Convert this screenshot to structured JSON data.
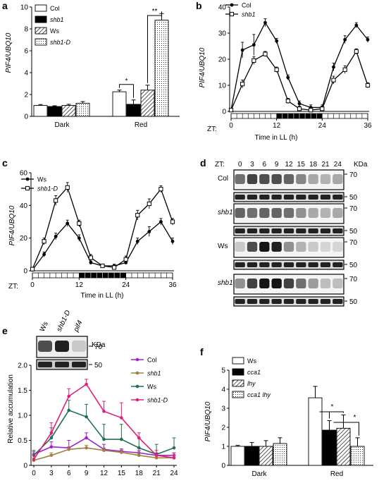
{
  "panels": {
    "a": {
      "label": "a",
      "chart_data": {
        "type": "bar",
        "ylabel": "PIF4/UBQ10",
        "ylim": [
          0,
          10
        ],
        "yticks": [
          "0",
          "2",
          "4",
          "6",
          "8",
          "10"
        ],
        "categories": [
          "Dark",
          "Red"
        ],
        "series": [
          {
            "name": "Col",
            "italic": false,
            "fill": "white",
            "values": [
              1.0,
              2.25
            ],
            "err": [
              0.08,
              0.15
            ]
          },
          {
            "name": "shb1",
            "italic": true,
            "fill": "black",
            "values": [
              0.9,
              1.1
            ],
            "err": [
              0.07,
              0.4
            ]
          },
          {
            "name": "Ws",
            "italic": false,
            "fill": "hatch",
            "values": [
              1.0,
              2.4
            ],
            "err": [
              0.1,
              0.45
            ]
          },
          {
            "name": "shb1-D",
            "italic": true,
            "fill": "dots",
            "values": [
              1.2,
              8.8
            ],
            "err": [
              0.15,
              0.6
            ]
          }
        ],
        "annotations": [
          "*",
          "**"
        ]
      }
    },
    "b": {
      "label": "b",
      "chart_data": {
        "type": "line",
        "ylabel": "PIF4/UBQ10",
        "xlabel": "Time in LL (h)",
        "zt_label": "ZT:",
        "ylim": [
          0,
          40
        ],
        "yticks": [
          "0",
          "10",
          "20",
          "30",
          "40"
        ],
        "xlim": [
          0,
          36
        ],
        "xticks": [
          "0",
          "12",
          "24",
          "36"
        ],
        "x": [
          0,
          3,
          6,
          9,
          12,
          15,
          18,
          21,
          24,
          27,
          30,
          33,
          36
        ],
        "series": [
          {
            "name": "Col",
            "marker": "filled",
            "values": [
              0.5,
              23.5,
              25.5,
              34,
              27,
              13,
              3,
              1.5,
              1.5,
              17,
              27.5,
              33,
              27.5
            ],
            "err": [
              0.5,
              3,
              4,
              1.5,
              1,
              1,
              1,
              1,
              1,
              1.5,
              1.5,
              1,
              1
            ]
          },
          {
            "name": "shb1",
            "marker": "open",
            "values": [
              0.5,
              10.5,
              19.5,
              22,
              16,
              4,
              1,
              0.5,
              1,
              12,
              16,
              23,
              10
            ],
            "err": [
              0.5,
              1.5,
              1.5,
              1,
              1,
              1,
              1,
              0.5,
              1,
              1.5,
              1.5,
              1,
              1
            ]
          }
        ]
      }
    },
    "c": {
      "label": "c",
      "chart_data": {
        "type": "line",
        "ylabel": "PIF4/UBQ10",
        "xlabel": "Time in LL (h)",
        "zt_label": "ZT:",
        "ylim": [
          0,
          60
        ],
        "yticks": [
          "0",
          "20",
          "40",
          "60"
        ],
        "xlim": [
          0,
          36
        ],
        "xticks": [
          "0",
          "12",
          "24",
          "36"
        ],
        "x": [
          0,
          3,
          6,
          9,
          12,
          15,
          18,
          21,
          24,
          27,
          30,
          33,
          36
        ],
        "series": [
          {
            "name": "Ws",
            "marker": "filled",
            "values": [
              0.5,
              10,
              21,
              29,
              20,
              5,
              3,
              3,
              5,
              18,
              24,
              30,
              18
            ],
            "err": [
              0.5,
              1.5,
              2,
              2,
              2,
              1,
              1,
              1,
              1,
              2,
              3,
              2,
              2
            ]
          },
          {
            "name": "shb1-D",
            "marker": "open",
            "values": [
              1,
              18,
              43,
              51,
              29,
              8,
              3,
              2,
              7,
              34,
              41,
              50,
              30
            ],
            "err": [
              1,
              2,
              3,
              3,
              2,
              2,
              1,
              1,
              2,
              3,
              3,
              2,
              2
            ]
          }
        ]
      }
    },
    "d": {
      "label": "d",
      "zt_label": "ZT:",
      "zt": [
        "0",
        "3",
        "6",
        "9",
        "12",
        "15",
        "18",
        "21",
        "24"
      ],
      "kda": "KDa",
      "rows": [
        "Col",
        "shb1",
        "Ws",
        "shb1-D"
      ],
      "rows_italic": [
        false,
        true,
        false,
        true
      ],
      "markers": [
        "70",
        "50"
      ]
    },
    "e": {
      "label": "e",
      "blot_lanes": [
        "Ws",
        "shb1-D",
        "pif4"
      ],
      "kda": "KDa",
      "markers": [
        "70",
        "50"
      ],
      "chart_data": {
        "type": "line",
        "ylabel": "Relative accumulation",
        "ylim": [
          0,
          2.0
        ],
        "yticks": [
          "0",
          "0.5",
          "1.0",
          "1.5",
          "2.0"
        ],
        "x": [
          0,
          3,
          6,
          9,
          12,
          15,
          18,
          21,
          24
        ],
        "series": [
          {
            "name": "Col",
            "italic": false,
            "color": "#A020D0",
            "values": [
              0.22,
              0.37,
              0.35,
              0.55,
              0.32,
              0.28,
              0.25,
              0.2,
              0.2
            ],
            "err": [
              0.05,
              0.1,
              0.15,
              0.1,
              0.1,
              0.05,
              0.05,
              0.05,
              0.05
            ]
          },
          {
            "name": "shb1",
            "italic": true,
            "color": "#A08040",
            "values": [
              0.1,
              0.2,
              0.32,
              0.35,
              0.3,
              0.26,
              0.2,
              0.15,
              0.15
            ],
            "err": [
              0.05,
              0.05,
              0.05,
              0.05,
              0.05,
              0.05,
              0.05,
              0.05,
              0.05
            ]
          },
          {
            "name": "Ws",
            "italic": false,
            "color": "#207050",
            "values": [
              0.2,
              0.55,
              1.1,
              0.97,
              0.52,
              0.52,
              0.35,
              0.22,
              0.35
            ],
            "err": [
              0.1,
              0.2,
              0.2,
              0.25,
              0.3,
              0.3,
              0.2,
              0.2,
              0.2
            ]
          },
          {
            "name": "shb1-D",
            "italic": true,
            "color": "#E0207A",
            "values": [
              0.12,
              0.65,
              1.38,
              1.62,
              1.08,
              0.95,
              0.55,
              0.2,
              0.15
            ],
            "err": [
              0.1,
              0.2,
              0.15,
              0.1,
              0.2,
              0.3,
              0.1,
              0.1,
              0.1
            ]
          }
        ]
      }
    },
    "f": {
      "label": "f",
      "chart_data": {
        "type": "bar",
        "ylabel": "PIF4/UBQ10",
        "ylim": [
          0,
          5
        ],
        "yticks": [
          "0",
          "1",
          "2",
          "3",
          "4",
          "5"
        ],
        "categories": [
          "Dark",
          "Red"
        ],
        "series": [
          {
            "name": "Ws",
            "italic": false,
            "fill": "white",
            "values": [
              1.0,
              3.55
            ],
            "err": [
              0.05,
              0.6
            ]
          },
          {
            "name": "cca1",
            "italic": true,
            "fill": "black",
            "values": [
              1.0,
              1.85
            ],
            "err": [
              0.2,
              0.5
            ]
          },
          {
            "name": "lhy",
            "italic": true,
            "fill": "hatch",
            "values": [
              1.0,
              1.95
            ],
            "err": [
              0.3,
              0.7
            ]
          },
          {
            "name": "cca1 lhy",
            "italic": true,
            "fill": "dots",
            "values": [
              1.15,
              1.0
            ],
            "err": [
              0.3,
              0.45
            ]
          }
        ],
        "annotations": [
          "*",
          "*"
        ]
      }
    }
  }
}
